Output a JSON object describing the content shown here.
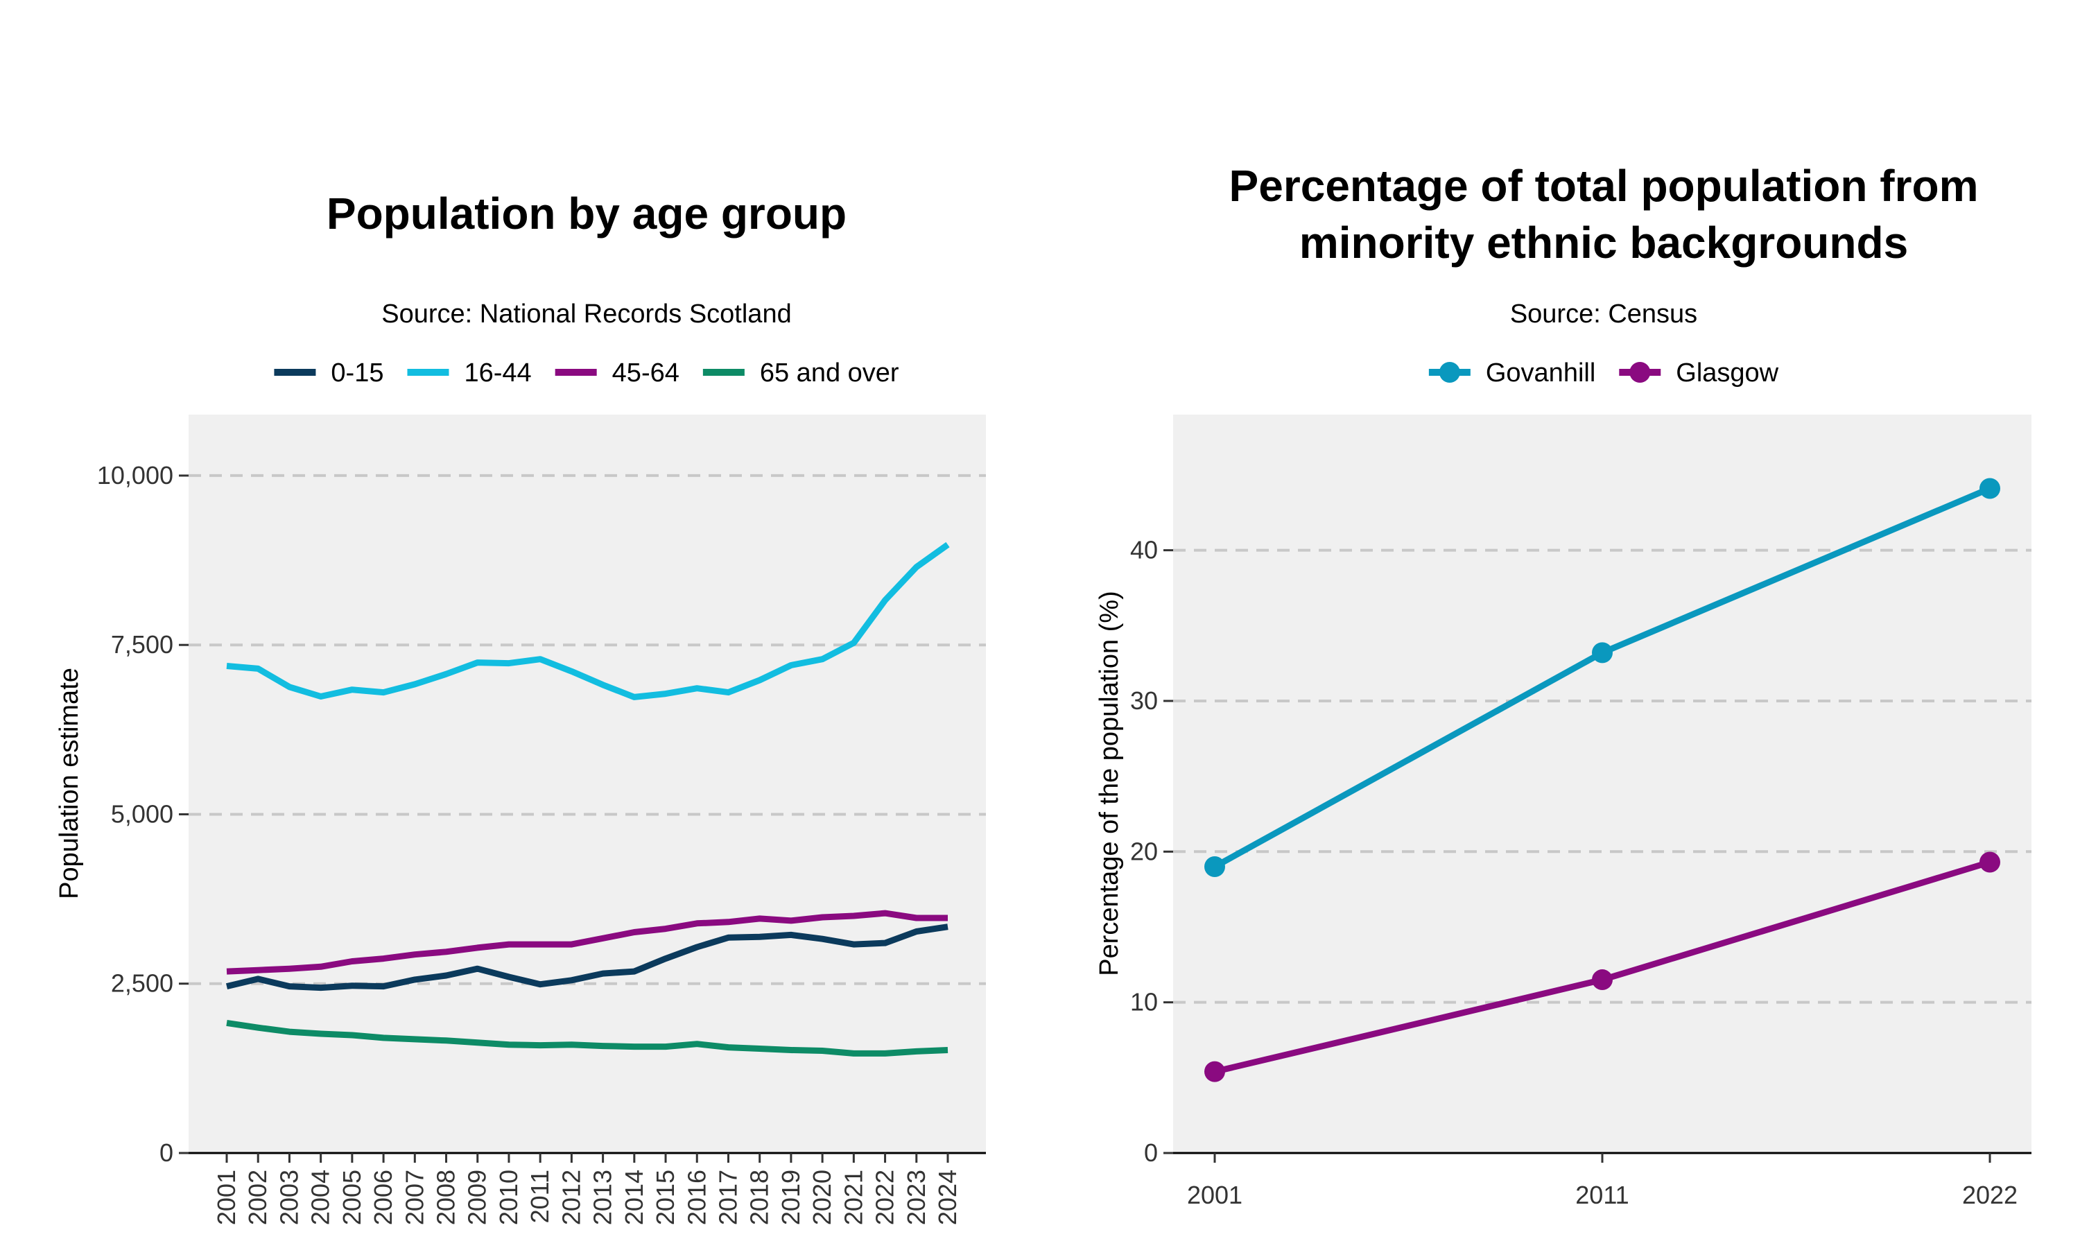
{
  "chart_data": [
    {
      "type": "line",
      "title": "Population by age group",
      "subtitle": "Source: National Records Scotland",
      "xlabel": "",
      "ylabel": "Population estimate",
      "x": [
        "2001",
        "2002",
        "2003",
        "2004",
        "2005",
        "2006",
        "2007",
        "2008",
        "2009",
        "2010",
        "2011",
        "2012",
        "2013",
        "2014",
        "2015",
        "2016",
        "2017",
        "2018",
        "2019",
        "2020",
        "2021",
        "2022",
        "2023",
        "2024"
      ],
      "ylim": [
        0,
        10900
      ],
      "yticks": [
        0,
        2500,
        5000,
        7500,
        10000
      ],
      "ytick_labels": [
        "0",
        "2,500",
        "5,000",
        "7,500",
        "10,000"
      ],
      "grid": "horizontal dashed",
      "legend_position": "top",
      "series": [
        {
          "name": "0-15",
          "color": "#0b3a5c",
          "values": [
            2460,
            2570,
            2460,
            2440,
            2470,
            2460,
            2560,
            2620,
            2720,
            2600,
            2490,
            2550,
            2650,
            2680,
            2870,
            3040,
            3180,
            3190,
            3220,
            3160,
            3080,
            3100,
            3270,
            3340
          ]
        },
        {
          "name": "16-44",
          "color": "#12bde0",
          "values": [
            7190,
            7150,
            6880,
            6740,
            6840,
            6800,
            6920,
            7070,
            7240,
            7230,
            7290,
            7110,
            6910,
            6730,
            6780,
            6860,
            6800,
            6980,
            7200,
            7290,
            7530,
            8160,
            8650,
            8980
          ]
        },
        {
          "name": "45-64",
          "color": "#8a0a80",
          "values": [
            2680,
            2700,
            2720,
            2750,
            2830,
            2870,
            2930,
            2970,
            3030,
            3080,
            3080,
            3080,
            3170,
            3260,
            3310,
            3390,
            3410,
            3460,
            3430,
            3480,
            3500,
            3540,
            3470,
            3470
          ]
        },
        {
          "name": "65 and over",
          "color": "#0d8b66",
          "values": [
            1920,
            1850,
            1790,
            1760,
            1740,
            1700,
            1680,
            1660,
            1630,
            1600,
            1590,
            1600,
            1580,
            1570,
            1570,
            1610,
            1560,
            1540,
            1520,
            1510,
            1470,
            1470,
            1500,
            1520
          ]
        }
      ]
    },
    {
      "type": "line",
      "title": "Percentage of total population from minority ethnic backgrounds",
      "title_lines": [
        "Percentage of total population from",
        "minority ethnic backgrounds"
      ],
      "subtitle": "Source: Census",
      "xlabel": "",
      "ylabel": "Percentage of the population (%)",
      "x": [
        "2001",
        "2011",
        "2022"
      ],
      "ylim": [
        0,
        49
      ],
      "yticks": [
        0,
        10,
        20,
        30,
        40
      ],
      "ytick_labels": [
        "0",
        "10",
        "20",
        "30",
        "40"
      ],
      "grid": "horizontal dashed",
      "legend_position": "top",
      "markers": true,
      "series": [
        {
          "name": "Govanhill",
          "color": "#0a98be",
          "values": [
            19.0,
            33.2,
            44.1
          ]
        },
        {
          "name": "Glasgow",
          "color": "#8a0a80",
          "values": [
            5.4,
            11.5,
            19.3
          ]
        }
      ]
    }
  ]
}
